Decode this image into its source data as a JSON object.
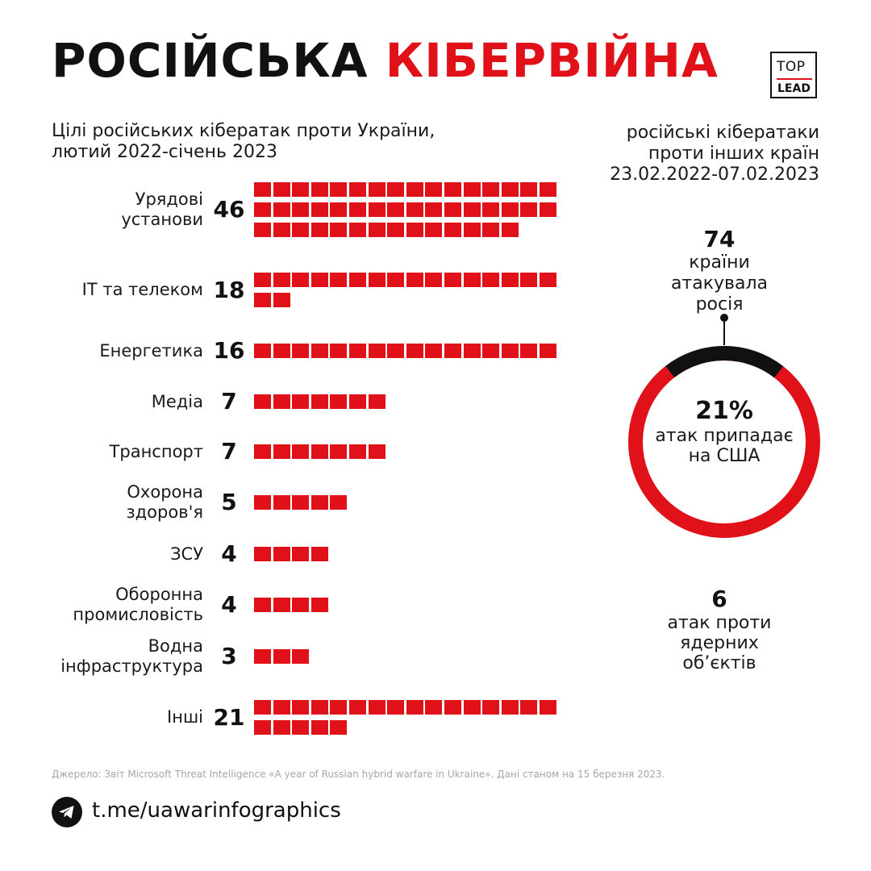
{
  "title": {
    "part1": "РОСІЙСЬКА",
    "part2": "КІБЕРВІЙНА"
  },
  "logo": {
    "top": "TOP",
    "bottom": "LEAD"
  },
  "subtitle_left": {
    "line1": "Цілі російських кібератак проти України,",
    "line2": "лютий 2022-січень 2023"
  },
  "subtitle_right": {
    "line1": "російські кібератаки",
    "line2": "проти інших країн",
    "line3": "23.02.2022-07.02.2023"
  },
  "chart_data": {
    "type": "bar",
    "title": "Цілі російських кібератак проти України, лютий 2022-січень 2023",
    "unit_per_square": 1,
    "categories": [
      {
        "label_lines": [
          "Урядові",
          "установи"
        ],
        "value": 46
      },
      {
        "label_lines": [
          "ІТ та телеком"
        ],
        "value": 18
      },
      {
        "label_lines": [
          "Енергетика"
        ],
        "value": 16
      },
      {
        "label_lines": [
          "Медіа"
        ],
        "value": 7
      },
      {
        "label_lines": [
          "Транспорт"
        ],
        "value": 7
      },
      {
        "label_lines": [
          "Охорона",
          "здоров'я"
        ],
        "value": 5
      },
      {
        "label_lines": [
          "ЗСУ"
        ],
        "value": 4
      },
      {
        "label_lines": [
          "Оборонна",
          "промисловість"
        ],
        "value": 4
      },
      {
        "label_lines": [
          "Водна",
          "інфраструктура"
        ],
        "value": 3
      },
      {
        "label_lines": [
          "Інші"
        ],
        "value": 21
      }
    ]
  },
  "stats": {
    "countries_value": "74",
    "countries_line1": "країни",
    "countries_line2": "атакувала",
    "countries_line3": "росія",
    "usa_share_percent": 21,
    "usa_pct_label": "21%",
    "usa_line1": "атак припадає",
    "usa_line2": "на США",
    "nuclear_value": "6",
    "nuclear_line1": "атак проти",
    "nuclear_line2": "ядерних",
    "nuclear_line3": "об’єктів"
  },
  "colors": {
    "accent": "#e1111a",
    "dark": "#111111"
  },
  "source": "Джерело: Звіт Microsoft Threat Intelligence «A year of Russian hybrid warfare in Ukraine». Дані станом на 15 березня 2023.",
  "footer": {
    "telegram_icon": "telegram-icon",
    "link": "t.me/uawarinfographics"
  }
}
